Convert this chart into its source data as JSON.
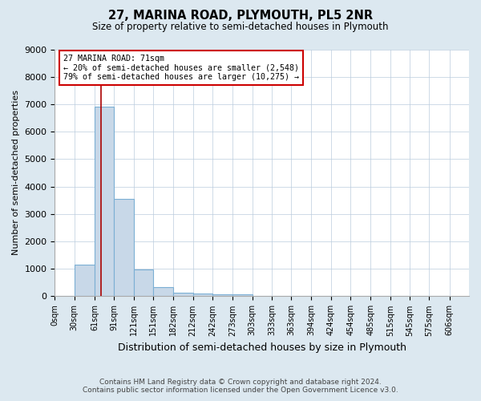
{
  "title": "27, MARINA ROAD, PLYMOUTH, PL5 2NR",
  "subtitle": "Size of property relative to semi-detached houses in Plymouth",
  "xlabel": "Distribution of semi-detached houses by size in Plymouth",
  "ylabel": "Number of semi-detached properties",
  "bin_labels": [
    "0sqm",
    "30sqm",
    "61sqm",
    "91sqm",
    "121sqm",
    "151sqm",
    "182sqm",
    "212sqm",
    "242sqm",
    "273sqm",
    "303sqm",
    "333sqm",
    "363sqm",
    "394sqm",
    "424sqm",
    "454sqm",
    "485sqm",
    "515sqm",
    "545sqm",
    "575sqm",
    "606sqm"
  ],
  "bin_edges": [
    0,
    30,
    61,
    91,
    121,
    151,
    182,
    212,
    242,
    273,
    303,
    333,
    363,
    394,
    424,
    454,
    485,
    515,
    545,
    575,
    606
  ],
  "bar_heights": [
    0,
    1150,
    6900,
    3550,
    970,
    320,
    140,
    95,
    70,
    60,
    0,
    0,
    0,
    0,
    0,
    0,
    0,
    0,
    0,
    0
  ],
  "bar_color": "#c8d8e8",
  "bar_edge_color": "#7bafd4",
  "property_line_x": 71,
  "property_line_color": "#aa0000",
  "annotation_line1": "27 MARINA ROAD: 71sqm",
  "annotation_line2": "← 20% of semi-detached houses are smaller (2,548)",
  "annotation_line3": "79% of semi-detached houses are larger (10,275) →",
  "annotation_box_color": "#cc0000",
  "annotation_bg_color": "#ffffff",
  "ylim": [
    0,
    9000
  ],
  "yticks": [
    0,
    1000,
    2000,
    3000,
    4000,
    5000,
    6000,
    7000,
    8000,
    9000
  ],
  "footer_line1": "Contains HM Land Registry data © Crown copyright and database right 2024.",
  "footer_line2": "Contains public sector information licensed under the Open Government Licence v3.0.",
  "bg_color": "#dce8f0",
  "plot_bg_color": "#ffffff",
  "grid_color": "#bbccdd"
}
